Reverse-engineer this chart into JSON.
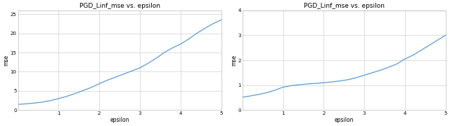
{
  "title": "PGD_Linf_mse vs. epsilon",
  "xlabel": "epsilon",
  "ylabel": "mse",
  "line_color": "#5b9bd5",
  "background_color": "#ffffff",
  "grid_color": "#d0d0d0",
  "plot1": {
    "x": [
      0.0,
      0.2,
      0.4,
      0.6,
      0.8,
      1.0,
      1.2,
      1.4,
      1.6,
      1.8,
      2.0,
      2.2,
      2.4,
      2.6,
      2.8,
      3.0,
      3.2,
      3.4,
      3.6,
      3.8,
      4.0,
      4.2,
      4.4,
      4.6,
      4.8,
      5.0
    ],
    "y": [
      1.5,
      1.65,
      1.85,
      2.1,
      2.5,
      3.0,
      3.6,
      4.3,
      5.1,
      5.9,
      6.9,
      7.8,
      8.6,
      9.4,
      10.2,
      11.0,
      12.2,
      13.5,
      15.0,
      16.2,
      17.2,
      18.5,
      20.0,
      21.3,
      22.5,
      23.5
    ],
    "xlim": [
      0,
      5
    ],
    "ylim": [
      0,
      26
    ],
    "yticks": [
      0,
      5,
      10,
      15,
      20,
      25
    ],
    "xticks": [
      1,
      2,
      3,
      4,
      5
    ]
  },
  "plot2": {
    "x": [
      0.0,
      0.2,
      0.4,
      0.6,
      0.8,
      1.0,
      1.2,
      1.4,
      1.6,
      1.8,
      2.0,
      2.2,
      2.4,
      2.6,
      2.8,
      3.0,
      3.2,
      3.4,
      3.6,
      3.8,
      4.0,
      4.2,
      4.4,
      4.6,
      4.8,
      5.0
    ],
    "y": [
      0.52,
      0.57,
      0.63,
      0.7,
      0.8,
      0.92,
      0.98,
      1.02,
      1.05,
      1.07,
      1.1,
      1.13,
      1.17,
      1.22,
      1.3,
      1.4,
      1.5,
      1.6,
      1.72,
      1.85,
      2.05,
      2.2,
      2.4,
      2.6,
      2.8,
      3.0
    ],
    "xlim": [
      0,
      5
    ],
    "ylim": [
      0,
      4
    ],
    "yticks": [
      0,
      1,
      2,
      3,
      4
    ],
    "xticks": [
      1,
      2,
      3,
      4,
      5
    ]
  }
}
